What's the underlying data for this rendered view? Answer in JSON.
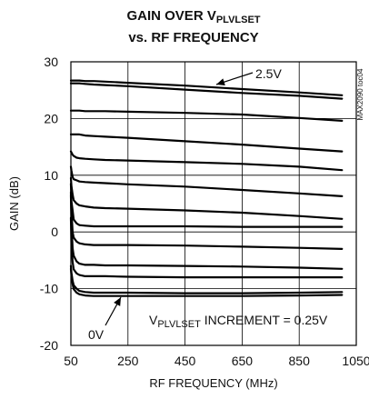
{
  "chart_data": {
    "type": "line",
    "title": {
      "line1_main": "GAIN OVER V",
      "line1_sub": "PLVLSET",
      "line2": "vs. RF FREQUENCY"
    },
    "xlabel": "RF FREQUENCY (MHz)",
    "ylabel": "GAIN (dB)",
    "xlim": [
      50,
      1050
    ],
    "ylim": [
      -20,
      30
    ],
    "x_ticks": [
      "50",
      "250",
      "450",
      "650",
      "850",
      "1050"
    ],
    "y_ticks": [
      "30",
      "20",
      "10",
      "0",
      "-10",
      "-20"
    ],
    "grid": true,
    "annotations": {
      "top_label": "2.5V",
      "bottom_label": "0V",
      "increment_main": "V",
      "increment_sub": "PLVLSET",
      "increment_rest": " INCREMENT = 0.25V",
      "side_code": "MAX2090 toc04"
    },
    "x": [
      50,
      52,
      56,
      60,
      70,
      80,
      100,
      130,
      170,
      250,
      450,
      650,
      850,
      1000
    ],
    "series": [
      {
        "values": [
          26.7,
          26.7,
          26.7,
          26.7,
          26.7,
          26.7,
          26.6,
          26.6,
          26.5,
          26.3,
          25.8,
          25.2,
          24.6,
          24.1
        ]
      },
      {
        "values": [
          26.2,
          26.2,
          26.2,
          26.2,
          26.2,
          26.2,
          26.1,
          26.0,
          25.9,
          25.7,
          25.1,
          24.5,
          24.0,
          23.5
        ]
      },
      {
        "values": [
          21.4,
          21.4,
          21.4,
          21.4,
          21.4,
          21.4,
          21.3,
          21.3,
          21.3,
          21.2,
          21.0,
          20.7,
          20.1,
          19.6
        ]
      },
      {
        "values": [
          17.2,
          17.2,
          17.2,
          17.2,
          17.2,
          17.2,
          17.0,
          16.9,
          16.8,
          16.6,
          16.0,
          15.4,
          14.7,
          14.2
        ]
      },
      {
        "values": [
          14.2,
          14.0,
          13.6,
          13.4,
          13.1,
          13.0,
          12.9,
          12.8,
          12.7,
          12.6,
          12.3,
          12.0,
          11.5,
          10.9
        ]
      },
      {
        "values": [
          11.5,
          10.8,
          9.7,
          9.3,
          9.1,
          8.9,
          8.8,
          8.7,
          8.6,
          8.4,
          8.0,
          7.4,
          6.8,
          6.3
        ]
      },
      {
        "values": [
          9.5,
          8.1,
          6.6,
          5.6,
          5.0,
          4.7,
          4.5,
          4.3,
          4.2,
          4.1,
          3.8,
          3.4,
          2.8,
          2.3
        ]
      },
      {
        "values": [
          8.5,
          5.4,
          3.8,
          2.2,
          1.5,
          1.2,
          1.1,
          1.0,
          1.0,
          1.0,
          1.0,
          0.9,
          0.9,
          0.9
        ]
      },
      {
        "values": [
          7.0,
          3.7,
          0.0,
          -1.0,
          -1.7,
          -2.0,
          -2.2,
          -2.3,
          -2.3,
          -2.3,
          -2.4,
          -2.6,
          -2.8,
          -3.0
        ]
      },
      {
        "values": [
          6.5,
          1.6,
          -2.9,
          -4.2,
          -5.2,
          -5.6,
          -5.8,
          -5.8,
          -5.9,
          -5.9,
          -6.0,
          -6.1,
          -6.3,
          -6.5
        ]
      },
      {
        "values": [
          2.5,
          -2.0,
          -5.3,
          -6.6,
          -7.3,
          -7.6,
          -7.8,
          -7.8,
          -7.8,
          -7.9,
          -8.0,
          -8.0,
          -8.0,
          -8.0
        ]
      },
      {
        "values": [
          -6.0,
          -7.2,
          -8.6,
          -9.4,
          -10.0,
          -10.4,
          -10.6,
          -10.7,
          -10.7,
          -10.7,
          -10.8,
          -10.8,
          -10.7,
          -10.6
        ]
      },
      {
        "values": [
          -6.5,
          -7.6,
          -9.2,
          -10.1,
          -10.7,
          -11.0,
          -11.2,
          -11.3,
          -11.3,
          -11.3,
          -11.3,
          -11.3,
          -11.2,
          -11.1
        ]
      }
    ]
  }
}
